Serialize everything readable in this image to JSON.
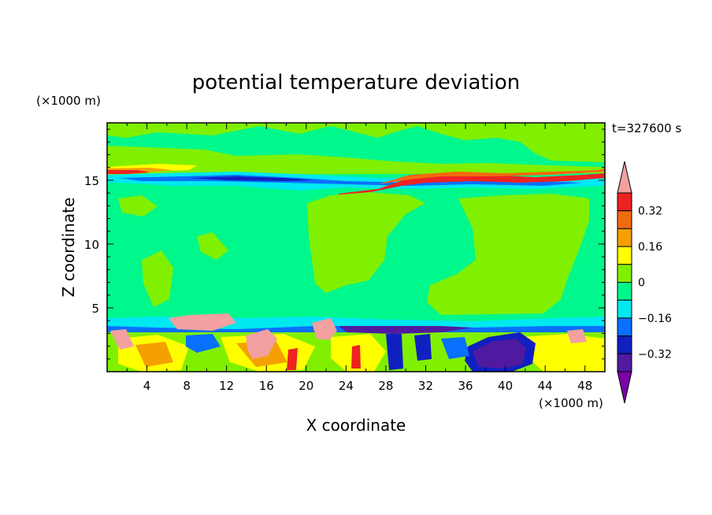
{
  "chart_data": {
    "type": "heatmap",
    "title": "potential temperature deviation",
    "xlabel": "X coordinate",
    "ylabel": "Z coordinate",
    "x_unit": "(×1000 m)",
    "y_unit": "(×1000 m)",
    "time_label": "t=327600 s",
    "xlim": [
      0,
      50
    ],
    "ylim": [
      0,
      19.5
    ],
    "x_ticks": [
      "4",
      "8",
      "12",
      "16",
      "20",
      "24",
      "28",
      "32",
      "36",
      "40",
      "44",
      "48"
    ],
    "y_ticks": [
      "5",
      "10",
      "15"
    ],
    "x_tick_values": [
      4,
      8,
      12,
      16,
      20,
      24,
      28,
      32,
      36,
      40,
      44,
      48
    ],
    "y_tick_values": [
      5,
      10,
      15
    ],
    "colorbar": {
      "labels": [
        "0.32",
        "0.16",
        "0",
        "−0.16",
        "−0.32"
      ],
      "label_values": [
        0.32,
        0.16,
        0,
        -0.16,
        -0.32
      ],
      "levels": [
        0.4,
        0.32,
        0.24,
        0.16,
        0.08,
        0,
        -0.08,
        -0.16,
        -0.24,
        -0.32,
        -0.4
      ],
      "colors": [
        "#f2a0a0",
        "#ee2222",
        "#f26a10",
        "#f5a000",
        "#ffff00",
        "#80f000",
        "#00f78c",
        "#00e8f0",
        "#0a70ff",
        "#1020c0",
        "#501aa0",
        "#7a00a8"
      ]
    },
    "regions": [
      {
        "name": "background near zero",
        "value": -0.04
      },
      {
        "name": "upper layer z 16-19.5 km",
        "value": 0.04
      },
      {
        "name": "inversion band near z=16 km",
        "value": 0.3
      },
      {
        "name": "cold band near z=15.5 km",
        "value": -0.25
      },
      {
        "name": "warm region x 17-30 km, z 5-14 km",
        "value": 0.04
      },
      {
        "name": "warm region x 37-50 km, z 5-14 km",
        "value": 0.04
      },
      {
        "name": "cool layer near z=4 km",
        "value": -0.12
      },
      {
        "name": "boundary layer convection z 0-4 km",
        "value": 0.2
      },
      {
        "name": "cold pool x 36-44 km, z 0-2 km",
        "value": -0.4
      }
    ]
  }
}
